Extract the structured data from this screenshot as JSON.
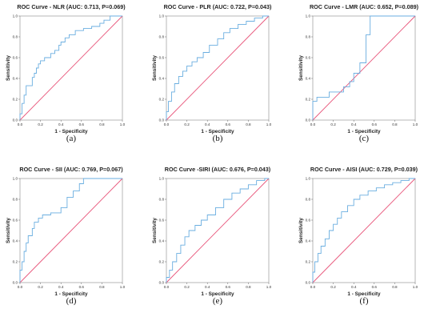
{
  "chart_data": [
    {
      "type": "line",
      "panel": "(a)",
      "title": "ROC Curve - NLR (AUC: 0.713, P=0.069)",
      "xlabel": "1 - Specificity",
      "ylabel": "Sensitivity",
      "xticks": [
        "0.0",
        "0.2",
        "0.4",
        "0.6",
        "0.8",
        "1.0"
      ],
      "yticks": [
        "0.0",
        "0.2",
        "0.4",
        "0.6",
        "0.8",
        "1.0"
      ],
      "xlim": [
        0,
        1
      ],
      "ylim": [
        0,
        1
      ],
      "grid": false,
      "series": [
        {
          "x": [
            0,
            0,
            0.02,
            0.02,
            0.04,
            0.04,
            0.06,
            0.06,
            0.12,
            0.12,
            0.14,
            0.14,
            0.16,
            0.16,
            0.18,
            0.18,
            0.2,
            0.2,
            0.24,
            0.24,
            0.3,
            0.3,
            0.34,
            0.34,
            0.38,
            0.38,
            0.4,
            0.4,
            0.44,
            0.44,
            0.48,
            0.48,
            0.54,
            0.54,
            0.62,
            0.62,
            0.7,
            0.7,
            0.78,
            0.78,
            0.82,
            0.82,
            0.88,
            0.88,
            1.0
          ],
          "y": [
            0,
            0.06,
            0.06,
            0.16,
            0.16,
            0.24,
            0.24,
            0.33,
            0.33,
            0.41,
            0.41,
            0.45,
            0.45,
            0.5,
            0.5,
            0.54,
            0.54,
            0.57,
            0.57,
            0.6,
            0.6,
            0.64,
            0.64,
            0.67,
            0.67,
            0.72,
            0.72,
            0.75,
            0.75,
            0.79,
            0.79,
            0.82,
            0.82,
            0.86,
            0.86,
            0.88,
            0.88,
            0.9,
            0.9,
            0.93,
            0.93,
            0.96,
            0.96,
            1.0,
            1.0
          ],
          "color": "#6aaee0"
        },
        {
          "x": [
            0,
            1
          ],
          "y": [
            0,
            1
          ],
          "color": "#e8557a"
        }
      ]
    },
    {
      "type": "line",
      "panel": "(b)",
      "title": "ROC Curve - PLR (AUC: 0.722, P=0.043)",
      "xlabel": "1 - Specificity",
      "ylabel": "Sensitivity",
      "xticks": [
        "0.0",
        "0.2",
        "0.4",
        "0.6",
        "0.8",
        "1.0"
      ],
      "yticks": [
        "0.0",
        "0.2",
        "0.4",
        "0.6",
        "0.8",
        "1.0"
      ],
      "xlim": [
        0,
        1
      ],
      "ylim": [
        0,
        1
      ],
      "grid": false,
      "series": [
        {
          "x": [
            0,
            0,
            0.02,
            0.02,
            0.05,
            0.05,
            0.08,
            0.08,
            0.12,
            0.12,
            0.16,
            0.16,
            0.2,
            0.2,
            0.25,
            0.25,
            0.3,
            0.3,
            0.36,
            0.36,
            0.42,
            0.42,
            0.5,
            0.5,
            0.56,
            0.56,
            0.62,
            0.62,
            0.7,
            0.7,
            0.78,
            0.78,
            0.86,
            0.86,
            0.94,
            0.94,
            1.0
          ],
          "y": [
            0,
            0.08,
            0.08,
            0.18,
            0.18,
            0.27,
            0.27,
            0.35,
            0.35,
            0.42,
            0.42,
            0.47,
            0.47,
            0.52,
            0.52,
            0.56,
            0.56,
            0.6,
            0.6,
            0.65,
            0.65,
            0.72,
            0.72,
            0.78,
            0.78,
            0.84,
            0.84,
            0.88,
            0.88,
            0.92,
            0.92,
            0.95,
            0.95,
            0.98,
            0.98,
            1.0,
            1.0
          ],
          "color": "#6aaee0"
        },
        {
          "x": [
            0,
            1
          ],
          "y": [
            0,
            1
          ],
          "color": "#e8557a"
        }
      ]
    },
    {
      "type": "line",
      "panel": "(c)",
      "title": "ROC Curve - LMR (AUC: 0.652, P=0.089)",
      "xlabel": "1 - Specificity",
      "ylabel": "Sensitivity",
      "xticks": [
        "0.0",
        "0.2",
        "0.4",
        "0.6",
        "0.8",
        "1.0"
      ],
      "yticks": [
        "0.0",
        "0.2",
        "0.4",
        "0.6",
        "0.8",
        "1.0"
      ],
      "xlim": [
        0,
        1
      ],
      "ylim": [
        0,
        1
      ],
      "grid": false,
      "series": [
        {
          "x": [
            0,
            0,
            0.04,
            0.04,
            0.16,
            0.16,
            0.3,
            0.3,
            0.36,
            0.36,
            0.4,
            0.4,
            0.46,
            0.46,
            0.52,
            0.52,
            0.56,
            0.56,
            1.0
          ],
          "y": [
            0,
            0.18,
            0.18,
            0.22,
            0.22,
            0.27,
            0.27,
            0.32,
            0.32,
            0.37,
            0.37,
            0.45,
            0.45,
            0.55,
            0.55,
            0.82,
            0.82,
            1.0,
            1.0
          ],
          "color": "#6aaee0"
        },
        {
          "x": [
            0,
            1
          ],
          "y": [
            0,
            1
          ],
          "color": "#e8557a"
        }
      ]
    },
    {
      "type": "line",
      "panel": "(d)",
      "title": "ROC Curve - SII (AUC: 0.769, P=0.067)",
      "xlabel": "1 - Specificity",
      "ylabel": "Sensitivity",
      "xticks": [
        "0.0",
        "0.2",
        "0.4",
        "0.6",
        "0.8",
        "1.0"
      ],
      "yticks": [
        "0.0",
        "0.2",
        "0.4",
        "0.6",
        "0.8",
        "1.0"
      ],
      "xlim": [
        0,
        1
      ],
      "ylim": [
        0,
        1
      ],
      "grid": false,
      "series": [
        {
          "x": [
            0,
            0,
            0.02,
            0.02,
            0.04,
            0.04,
            0.06,
            0.06,
            0.08,
            0.08,
            0.12,
            0.12,
            0.14,
            0.14,
            0.18,
            0.18,
            0.22,
            0.22,
            0.3,
            0.3,
            0.4,
            0.4,
            0.46,
            0.46,
            0.52,
            0.52,
            0.58,
            0.58,
            0.62,
            0.62,
            1.0
          ],
          "y": [
            0,
            0.12,
            0.12,
            0.2,
            0.2,
            0.3,
            0.3,
            0.38,
            0.38,
            0.45,
            0.45,
            0.52,
            0.52,
            0.58,
            0.58,
            0.62,
            0.62,
            0.65,
            0.65,
            0.67,
            0.67,
            0.72,
            0.72,
            0.82,
            0.82,
            0.88,
            0.88,
            0.95,
            0.95,
            1.0,
            1.0
          ],
          "color": "#6aaee0"
        },
        {
          "x": [
            0,
            1
          ],
          "y": [
            0,
            1
          ],
          "color": "#e8557a"
        }
      ]
    },
    {
      "type": "line",
      "panel": "(e)",
      "title": "ROC Curve -SIRI (AUC: 0.676, P=0.043)",
      "xlabel": "1 - Specificity",
      "ylabel": "Sensitivity",
      "xticks": [
        "0.0",
        "0.2",
        "0.4",
        "0.6",
        "0.8",
        "1.0"
      ],
      "yticks": [
        "0.0",
        "0.2",
        "0.4",
        "0.6",
        "0.8",
        "1.0"
      ],
      "xlim": [
        0,
        1
      ],
      "ylim": [
        0,
        1
      ],
      "grid": false,
      "series": [
        {
          "x": [
            0,
            0,
            0.03,
            0.03,
            0.06,
            0.06,
            0.1,
            0.1,
            0.14,
            0.14,
            0.18,
            0.18,
            0.22,
            0.22,
            0.28,
            0.28,
            0.34,
            0.34,
            0.4,
            0.4,
            0.48,
            0.48,
            0.56,
            0.56,
            0.64,
            0.64,
            0.72,
            0.72,
            0.8,
            0.8,
            0.88,
            0.88,
            0.96,
            0.96,
            1.0
          ],
          "y": [
            0,
            0.05,
            0.05,
            0.12,
            0.12,
            0.2,
            0.2,
            0.28,
            0.28,
            0.36,
            0.36,
            0.44,
            0.44,
            0.5,
            0.5,
            0.55,
            0.55,
            0.6,
            0.6,
            0.65,
            0.65,
            0.72,
            0.72,
            0.8,
            0.8,
            0.86,
            0.86,
            0.9,
            0.9,
            0.94,
            0.94,
            0.98,
            0.98,
            1.0,
            1.0
          ],
          "color": "#6aaee0"
        },
        {
          "x": [
            0,
            1
          ],
          "y": [
            0,
            1
          ],
          "color": "#e8557a"
        }
      ]
    },
    {
      "type": "line",
      "panel": "(f)",
      "title": "ROC Curve - AISI (AUC: 0.729, P=0.039)",
      "xlabel": "1 - Specificity",
      "ylabel": "Sensitivity",
      "xticks": [
        "0.0",
        "0.2",
        "0.4",
        "0.6",
        "0.8",
        "1.0"
      ],
      "yticks": [
        "0.0",
        "0.2",
        "0.4",
        "0.6",
        "0.8",
        "1.0"
      ],
      "xlim": [
        0,
        1
      ],
      "ylim": [
        0,
        1
      ],
      "grid": false,
      "series": [
        {
          "x": [
            0,
            0,
            0.02,
            0.02,
            0.05,
            0.05,
            0.08,
            0.08,
            0.12,
            0.12,
            0.16,
            0.16,
            0.2,
            0.2,
            0.24,
            0.24,
            0.28,
            0.28,
            0.34,
            0.34,
            0.4,
            0.4,
            0.46,
            0.46,
            0.54,
            0.54,
            0.62,
            0.62,
            0.7,
            0.7,
            0.78,
            0.78,
            0.86,
            0.86,
            0.94,
            0.94,
            1.0
          ],
          "y": [
            0,
            0.1,
            0.1,
            0.2,
            0.2,
            0.28,
            0.28,
            0.35,
            0.35,
            0.42,
            0.42,
            0.5,
            0.5,
            0.56,
            0.56,
            0.62,
            0.62,
            0.68,
            0.68,
            0.74,
            0.74,
            0.8,
            0.8,
            0.84,
            0.84,
            0.88,
            0.88,
            0.91,
            0.91,
            0.94,
            0.94,
            0.96,
            0.96,
            0.98,
            0.98,
            1.0,
            1.0
          ],
          "color": "#6aaee0"
        },
        {
          "x": [
            0,
            1
          ],
          "y": [
            0,
            1
          ],
          "color": "#e8557a"
        }
      ]
    }
  ]
}
